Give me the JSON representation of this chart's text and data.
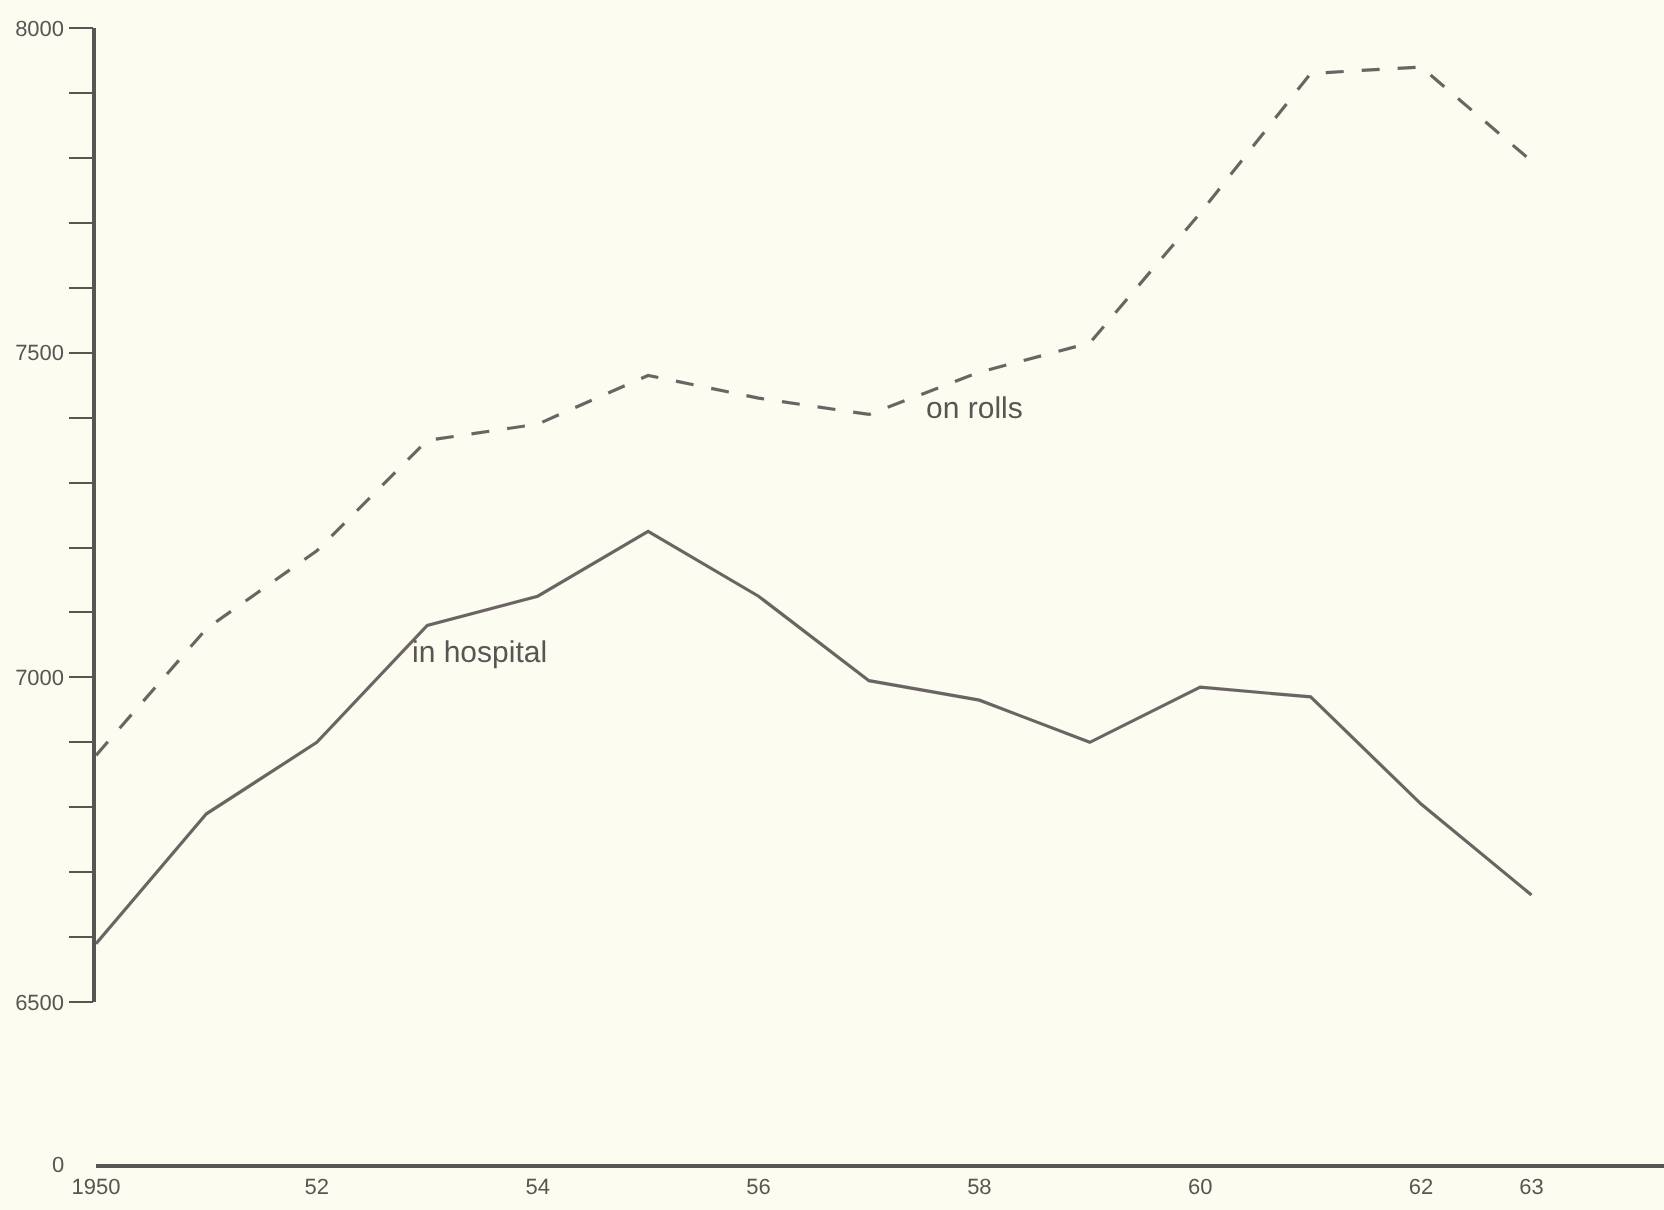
{
  "chart_data": {
    "type": "line",
    "x": [
      1950,
      1951,
      1952,
      1953,
      1954,
      1955,
      1956,
      1957,
      1958,
      1959,
      1960,
      1961,
      1962,
      1963
    ],
    "series": [
      {
        "color": "#6b6462",
        "line_style": "dashed",
        "values": [
          6880,
          7075,
          7195,
          7365,
          7390,
          7465,
          7430,
          7405,
          7470,
          7515,
          7715,
          7930,
          7940,
          7795
        ]
      },
      {
        "color": "#6b6462",
        "line_style": "solid",
        "values": [
          6590,
          6790,
          6900,
          7080,
          7125,
          7225,
          7125,
          6995,
          6965,
          6900,
          6985,
          6970,
          6805,
          6665
        ]
      }
    ],
    "xlim": [
      1950,
      1964.2
    ],
    "xticks": [
      {
        "value": 1950,
        "label": "1950"
      },
      {
        "value": 1952,
        "label": "52"
      },
      {
        "value": 1954,
        "label": "54"
      },
      {
        "value": 1956,
        "label": "56"
      },
      {
        "value": 1958,
        "label": "58"
      },
      {
        "value": 1960,
        "label": "60"
      },
      {
        "value": 1962,
        "label": "62"
      },
      {
        "value": 1963,
        "label": "63"
      }
    ],
    "ylim": [
      6500,
      8000
    ],
    "yticks": [
      6500,
      {
        "value": 6600,
        "label": null
      },
      {
        "value": 6700,
        "label": null
      },
      {
        "value": 6800,
        "label": null
      },
      {
        "value": 6900,
        "label": null
      },
      7000,
      {
        "value": 7100,
        "label": null
      },
      {
        "value": 7200,
        "label": null
      },
      {
        "value": 7300,
        "label": null
      },
      {
        "value": 7400,
        "label": null
      },
      7500,
      {
        "value": 7600,
        "label": null
      },
      {
        "value": 7700,
        "label": null
      },
      {
        "value": 7800,
        "label": null
      },
      {
        "value": 7900,
        "label": null
      },
      8000
    ],
    "annotations": [
      "on rolls",
      "in hospital",
      "0"
    ],
    "grid": false,
    "marker": "none"
  }
}
